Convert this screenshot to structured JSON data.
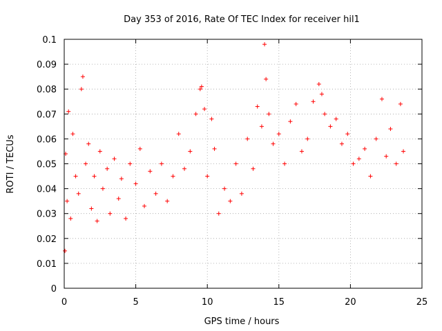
{
  "chart_data": {
    "type": "scatter",
    "title": "Day 353 of 2016, Rate Of TEC Index for receiver hil1",
    "xlabel": "GPS time / hours",
    "ylabel": "ROTI / TECUs",
    "xlim": [
      0,
      25
    ],
    "ylim": [
      0,
      0.1
    ],
    "xticks": [
      0,
      5,
      10,
      15,
      20,
      25
    ],
    "yticks": [
      0,
      0.01,
      0.02,
      0.03,
      0.04,
      0.05,
      0.06,
      0.07,
      0.08,
      0.09,
      0.1
    ],
    "xtick_labels": [
      "0",
      "5",
      "10",
      "15",
      "20",
      "25"
    ],
    "ytick_labels": [
      "0",
      "0.01",
      "0.02",
      "0.03",
      "0.04",
      "0.05",
      "0.06",
      "0.07",
      "0.08",
      "0.09",
      "0.1"
    ],
    "grid": true,
    "marker": "plus",
    "color": "#ff0000",
    "series": [
      {
        "x": [
          0.05,
          0.1,
          0.2,
          0.3,
          0.45,
          0.6,
          0.8,
          1.0,
          1.2,
          1.3,
          1.5,
          1.7,
          1.9,
          2.1,
          2.3,
          2.5,
          2.7,
          3.0,
          3.2,
          3.5,
          3.8,
          4.0,
          4.3,
          4.6,
          5.0,
          5.3,
          5.6,
          6.0,
          6.4,
          6.8,
          7.2,
          7.6,
          8.0,
          8.4,
          8.8,
          9.2,
          9.5,
          9.6,
          9.8,
          10.0,
          10.3,
          10.5,
          10.8,
          11.2,
          11.6,
          12.0,
          12.4,
          12.8,
          13.2,
          13.5,
          13.8,
          14.0,
          14.1,
          14.3,
          14.6,
          15.0,
          15.4,
          15.8,
          16.2,
          16.6,
          17.0,
          17.4,
          17.8,
          18.0,
          18.2,
          18.6,
          19.0,
          19.4,
          19.8,
          20.2,
          20.6,
          21.0,
          21.4,
          21.8,
          22.2,
          22.5,
          22.8,
          23.2,
          23.5,
          23.7
        ],
        "y": [
          0.015,
          0.054,
          0.035,
          0.071,
          0.028,
          0.062,
          0.045,
          0.038,
          0.08,
          0.085,
          0.05,
          0.058,
          0.032,
          0.045,
          0.027,
          0.055,
          0.04,
          0.048,
          0.03,
          0.052,
          0.036,
          0.044,
          0.028,
          0.05,
          0.042,
          0.056,
          0.033,
          0.047,
          0.038,
          0.05,
          0.035,
          0.045,
          0.062,
          0.048,
          0.055,
          0.07,
          0.08,
          0.081,
          0.072,
          0.045,
          0.068,
          0.056,
          0.03,
          0.04,
          0.035,
          0.05,
          0.038,
          0.06,
          0.048,
          0.073,
          0.065,
          0.098,
          0.084,
          0.07,
          0.058,
          0.062,
          0.05,
          0.067,
          0.074,
          0.055,
          0.06,
          0.075,
          0.082,
          0.078,
          0.07,
          0.065,
          0.068,
          0.058,
          0.062,
          0.05,
          0.052,
          0.056,
          0.045,
          0.06,
          0.076,
          0.053,
          0.064,
          0.05,
          0.074,
          0.055
        ]
      }
    ]
  }
}
